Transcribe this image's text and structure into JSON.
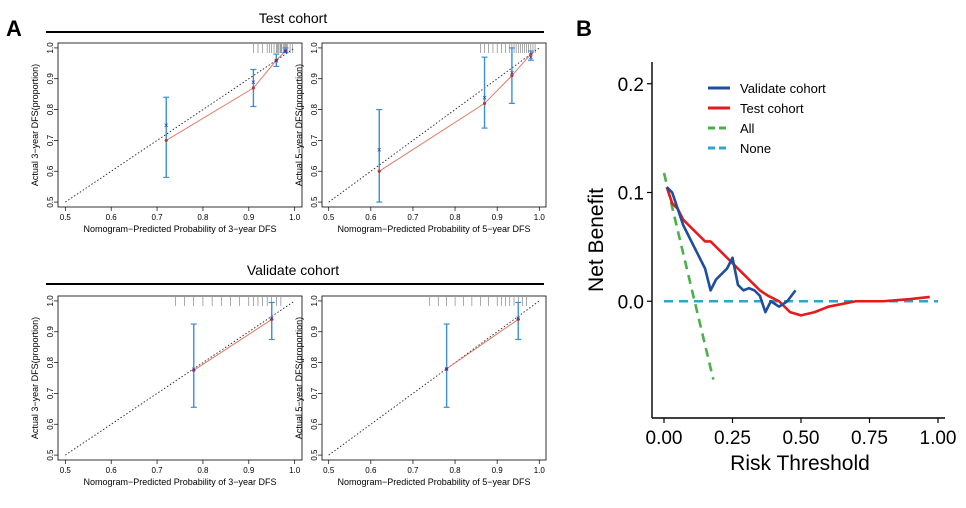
{
  "panel_a": {
    "letter": "A",
    "test_header": "Test cohort",
    "validate_header": "Validate cohort"
  },
  "panel_b": {
    "letter": "B"
  },
  "chart_data": [
    {
      "type": "scatter",
      "id": "test-3yr",
      "xlabel": "Nomogram−Predicted Probability of 3−year DFS",
      "ylabel": "Actual 3−year DFS(proportion)",
      "xlim": [
        0.5,
        1.0
      ],
      "ylim": [
        0.5,
        1.0
      ],
      "xticks": [
        "0.5",
        "0.6",
        "0.7",
        "0.8",
        "0.9",
        "1.0"
      ],
      "yticks": [
        "0.5",
        "0.6",
        "0.7",
        "0.8",
        "0.9",
        "1.0"
      ],
      "points": [
        {
          "x": 0.72,
          "observed": 0.7,
          "corrected": 0.75,
          "lo": 0.58,
          "hi": 0.84
        },
        {
          "x": 0.91,
          "observed": 0.87,
          "corrected": 0.89,
          "lo": 0.81,
          "hi": 0.93
        },
        {
          "x": 0.96,
          "observed": 0.96,
          "corrected": 0.96,
          "lo": 0.94,
          "hi": 0.98
        },
        {
          "x": 0.98,
          "observed": 0.99,
          "corrected": 0.99,
          "lo": 0.985,
          "hi": 1.0
        }
      ],
      "rug": [
        0.91,
        0.92,
        0.93,
        0.94,
        0.945,
        0.95,
        0.955,
        0.96,
        0.962,
        0.965,
        0.968,
        0.97,
        0.972,
        0.975,
        0.978,
        0.98,
        0.982,
        0.985,
        0.99,
        0.995
      ]
    },
    {
      "type": "scatter",
      "id": "test-5yr",
      "xlabel": "Nomogram−Predicted Probability of 5−year DFS",
      "ylabel": "Actual 5−year DFS(proportion)",
      "xlim": [
        0.5,
        1.0
      ],
      "ylim": [
        0.5,
        1.0
      ],
      "xticks": [
        "0.5",
        "0.6",
        "0.7",
        "0.8",
        "0.9",
        "1.0"
      ],
      "yticks": [
        "0.5",
        "0.6",
        "0.7",
        "0.8",
        "0.9",
        "1.0"
      ],
      "points": [
        {
          "x": 0.62,
          "observed": 0.6,
          "corrected": 0.67,
          "lo": 0.5,
          "hi": 0.8
        },
        {
          "x": 0.87,
          "observed": 0.82,
          "corrected": 0.84,
          "lo": 0.74,
          "hi": 0.97
        },
        {
          "x": 0.935,
          "observed": 0.91,
          "corrected": 0.92,
          "lo": 0.82,
          "hi": 1.0
        },
        {
          "x": 0.98,
          "observed": 0.98,
          "corrected": 0.97,
          "lo": 0.96,
          "hi": 0.99
        }
      ],
      "rug": [
        0.86,
        0.87,
        0.88,
        0.89,
        0.9,
        0.91,
        0.92,
        0.93,
        0.935,
        0.94,
        0.945,
        0.95,
        0.955,
        0.96,
        0.965,
        0.97,
        0.975,
        0.98,
        0.985,
        0.99
      ]
    },
    {
      "type": "scatter",
      "id": "validate-3yr",
      "xlabel": "Nomogram−Predicted Probability of 3−year DFS",
      "ylabel": "Actual 3−year DFS(proportion)",
      "xlim": [
        0.5,
        1.0
      ],
      "ylim": [
        0.5,
        1.0
      ],
      "xticks": [
        "0.5",
        "0.6",
        "0.7",
        "0.8",
        "0.9",
        "1.0"
      ],
      "yticks": [
        "0.5",
        "0.6",
        "0.7",
        "0.8",
        "0.9",
        "1.0"
      ],
      "points": [
        {
          "x": 0.78,
          "observed": 0.775,
          "corrected": 0.78,
          "lo": 0.655,
          "hi": 0.925
        },
        {
          "x": 0.95,
          "observed": 0.94,
          "corrected": 0.945,
          "lo": 0.875,
          "hi": 0.995
        }
      ],
      "rug": [
        0.74,
        0.76,
        0.78,
        0.8,
        0.82,
        0.84,
        0.86,
        0.88,
        0.9,
        0.91,
        0.92,
        0.93,
        0.94,
        0.95,
        0.96,
        0.97
      ]
    },
    {
      "type": "scatter",
      "id": "validate-5yr",
      "xlabel": "Nomogram−Predicted Probability of 5−year DFS",
      "ylabel": "Actual 5−year DFS(proportion)",
      "xlim": [
        0.5,
        1.0
      ],
      "ylim": [
        0.5,
        1.0
      ],
      "xticks": [
        "0.5",
        "0.6",
        "0.7",
        "0.8",
        "0.9",
        "1.0"
      ],
      "yticks": [
        "0.5",
        "0.6",
        "0.7",
        "0.8",
        "0.9",
        "1.0"
      ],
      "points": [
        {
          "x": 0.78,
          "observed": 0.78,
          "corrected": 0.78,
          "lo": 0.655,
          "hi": 0.925
        },
        {
          "x": 0.95,
          "observed": 0.94,
          "corrected": 0.945,
          "lo": 0.875,
          "hi": 0.995
        }
      ],
      "rug": [
        0.74,
        0.76,
        0.78,
        0.8,
        0.82,
        0.84,
        0.86,
        0.88,
        0.9,
        0.91,
        0.92,
        0.93,
        0.94,
        0.95,
        0.96,
        0.97
      ]
    },
    {
      "type": "line",
      "id": "dca",
      "xlabel": "Risk Threshold",
      "ylabel": "Net Benefit",
      "xlim": [
        0.0,
        1.0
      ],
      "ylim": [
        -0.1,
        0.22
      ],
      "xticks": [
        "0.00",
        "0.25",
        "0.50",
        "0.75",
        "1.00"
      ],
      "yticks": [
        "0.0",
        "0.1",
        "0.2"
      ],
      "legend_position": "top-right",
      "series": [
        {
          "name": "Validate cohort",
          "color": "#1f4e9c",
          "dash": false,
          "x": [
            0.01,
            0.03,
            0.05,
            0.07,
            0.09,
            0.11,
            0.13,
            0.15,
            0.17,
            0.19,
            0.21,
            0.23,
            0.25,
            0.27,
            0.29,
            0.31,
            0.33,
            0.35,
            0.37,
            0.39,
            0.42,
            0.45,
            0.48
          ],
          "y": [
            0.105,
            0.1,
            0.085,
            0.07,
            0.06,
            0.05,
            0.04,
            0.03,
            0.01,
            0.02,
            0.025,
            0.03,
            0.04,
            0.015,
            0.01,
            0.012,
            0.01,
            0.005,
            -0.01,
            0.0,
            -0.005,
            0.0,
            0.01
          ]
        },
        {
          "name": "Test cohort",
          "color": "#e41a1c",
          "dash": false,
          "x": [
            0.01,
            0.03,
            0.05,
            0.07,
            0.09,
            0.11,
            0.13,
            0.15,
            0.17,
            0.19,
            0.21,
            0.23,
            0.25,
            0.27,
            0.29,
            0.31,
            0.33,
            0.35,
            0.38,
            0.42,
            0.46,
            0.5,
            0.55,
            0.6,
            0.7,
            0.8,
            0.9,
            0.97
          ],
          "y": [
            0.105,
            0.09,
            0.085,
            0.075,
            0.07,
            0.065,
            0.06,
            0.055,
            0.055,
            0.05,
            0.045,
            0.04,
            0.035,
            0.03,
            0.025,
            0.02,
            0.015,
            0.01,
            0.005,
            0.0,
            -0.01,
            -0.013,
            -0.01,
            -0.005,
            0.0,
            0.0,
            0.002,
            0.004
          ]
        },
        {
          "name": "All",
          "color": "#4daf4a",
          "dash": true,
          "x": [
            0.0,
            0.18
          ],
          "y": [
            0.118,
            -0.072
          ]
        },
        {
          "name": "None",
          "color": "#2ca6c9",
          "dash": true,
          "x": [
            0.0,
            1.0
          ],
          "y": [
            0.0,
            0.0
          ]
        }
      ]
    }
  ]
}
